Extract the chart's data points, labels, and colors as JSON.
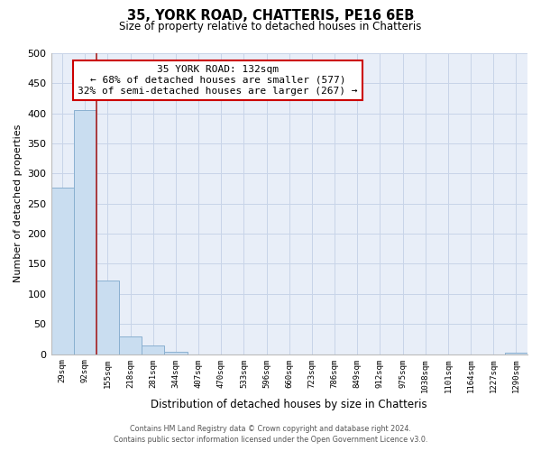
{
  "title": "35, YORK ROAD, CHATTERIS, PE16 6EB",
  "subtitle": "Size of property relative to detached houses in Chatteris",
  "xlabel": "Distribution of detached houses by size in Chatteris",
  "ylabel": "Number of detached properties",
  "bar_labels": [
    "29sqm",
    "92sqm",
    "155sqm",
    "218sqm",
    "281sqm",
    "344sqm",
    "407sqm",
    "470sqm",
    "533sqm",
    "596sqm",
    "660sqm",
    "723sqm",
    "786sqm",
    "849sqm",
    "912sqm",
    "975sqm",
    "1038sqm",
    "1101sqm",
    "1164sqm",
    "1227sqm",
    "1290sqm"
  ],
  "bar_values": [
    277,
    405,
    122,
    29,
    15,
    4,
    0,
    0,
    0,
    0,
    0,
    0,
    0,
    0,
    0,
    0,
    0,
    0,
    0,
    0,
    2
  ],
  "bar_color": "#c9ddf0",
  "bar_edge_color": "#8ab0d0",
  "redline_label": "35 YORK ROAD: 132sqm",
  "annotation_line1": "← 68% of detached houses are smaller (577)",
  "annotation_line2": "32% of semi-detached houses are larger (267) →",
  "ylim": [
    0,
    500
  ],
  "yticks": [
    0,
    50,
    100,
    150,
    200,
    250,
    300,
    350,
    400,
    450,
    500
  ],
  "footer_line1": "Contains HM Land Registry data © Crown copyright and database right 2024.",
  "footer_line2": "Contains public sector information licensed under the Open Government Licence v3.0.",
  "background_color": "#ffffff",
  "plot_bg_color": "#e8eef8",
  "grid_color": "#c8d4e8",
  "annotation_box_color": "#ffffff",
  "annotation_box_edge_color": "#cc0000",
  "redline_color": "#aa2222"
}
